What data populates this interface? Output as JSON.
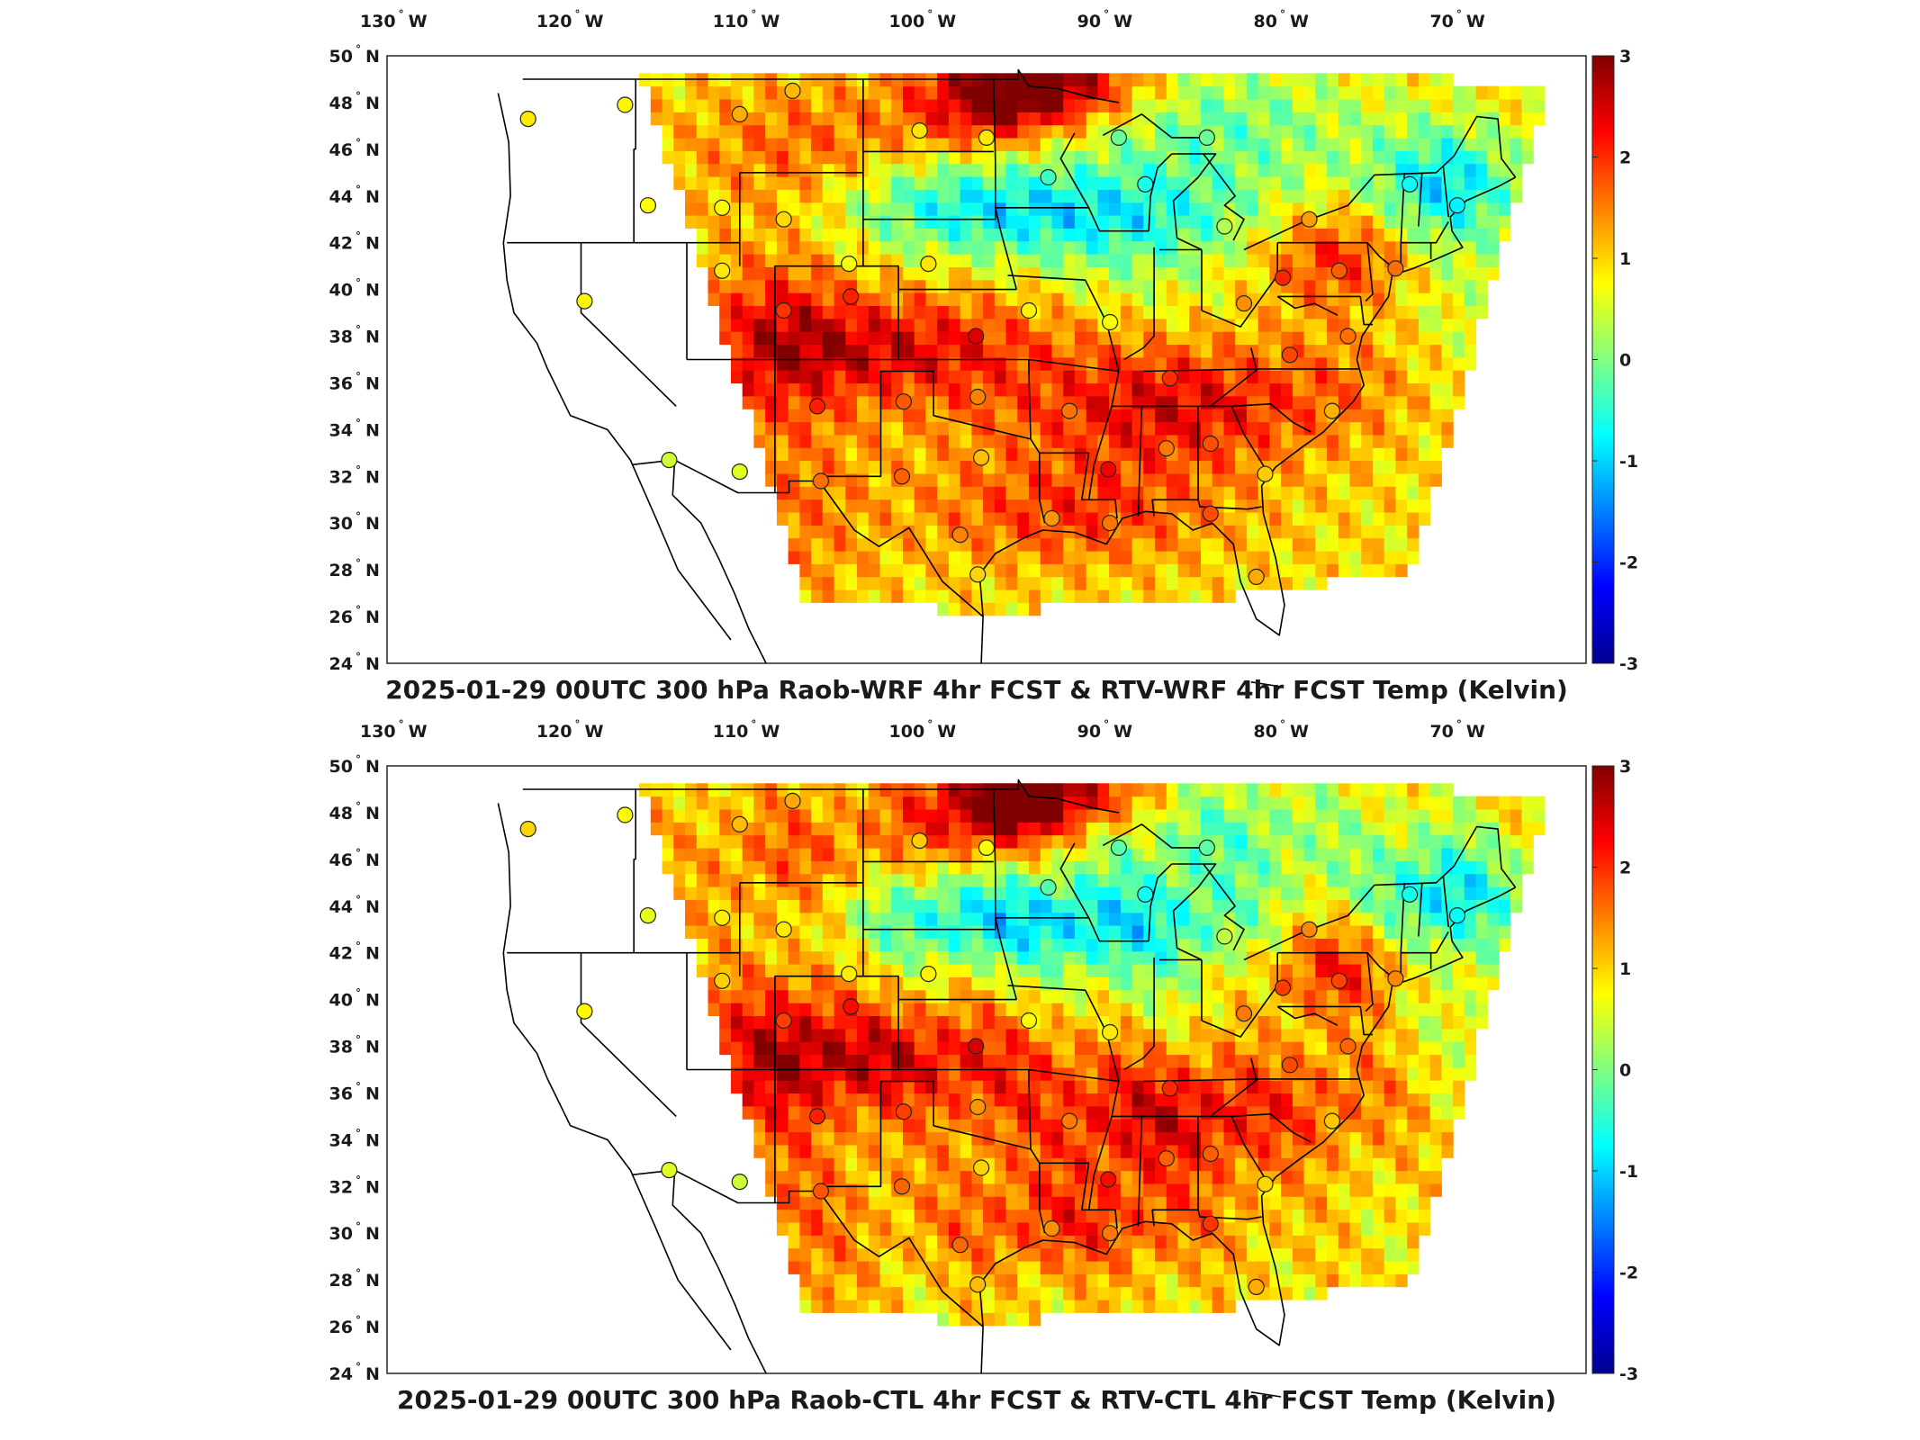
{
  "panels": [
    {
      "title": "2025-01-29 00UTC 300 hPa Raob-WRF 4hr FCST & RTV-WRF 4hr FCST Temp (Kelvin)"
    },
    {
      "title": "2025-01-29 00UTC 300 hPa Raob-CTL 4hr FCST & RTV-CTL 4hr FCST Temp (Kelvin)"
    }
  ],
  "axes": {
    "lon_ticks": [
      {
        "value": -130,
        "num": "130",
        "hemi": "W"
      },
      {
        "value": -120,
        "num": "120",
        "hemi": "W"
      },
      {
        "value": -110,
        "num": "110",
        "hemi": "W"
      },
      {
        "value": -100,
        "num": "100",
        "hemi": "W"
      },
      {
        "value": -90,
        "num": "90",
        "hemi": "W"
      },
      {
        "value": -80,
        "num": "80",
        "hemi": "W"
      },
      {
        "value": -70,
        "num": "70",
        "hemi": "W"
      }
    ],
    "lat_ticks": [
      {
        "value": 50,
        "num": "50",
        "hemi": "N"
      },
      {
        "value": 48,
        "num": "48",
        "hemi": "N"
      },
      {
        "value": 46,
        "num": "46",
        "hemi": "N"
      },
      {
        "value": 44,
        "num": "44",
        "hemi": "N"
      },
      {
        "value": 42,
        "num": "42",
        "hemi": "N"
      },
      {
        "value": 40,
        "num": "40",
        "hemi": "N"
      },
      {
        "value": 38,
        "num": "38",
        "hemi": "N"
      },
      {
        "value": 36,
        "num": "36",
        "hemi": "N"
      },
      {
        "value": 34,
        "num": "34",
        "hemi": "N"
      },
      {
        "value": 32,
        "num": "32",
        "hemi": "N"
      },
      {
        "value": 30,
        "num": "30",
        "hemi": "N"
      },
      {
        "value": 28,
        "num": "28",
        "hemi": "N"
      },
      {
        "value": 26,
        "num": "26",
        "hemi": "N"
      },
      {
        "value": 24,
        "num": "24",
        "hemi": "N"
      }
    ],
    "degree_symbol": "°"
  },
  "colorbar": {
    "min": -3,
    "max": 3,
    "ticks": [
      "3",
      "2",
      "1",
      "0",
      "-1",
      "-2",
      "-3"
    ],
    "colormap": "jet",
    "colors": [
      "#00008f",
      "#0000ff",
      "#00ffff",
      "#80ff80",
      "#ffff00",
      "#ff0000",
      "#800000"
    ]
  },
  "raob_stations": [
    {
      "lon": -123.0,
      "lat": 47.3
    },
    {
      "lon": -117.5,
      "lat": 47.9
    },
    {
      "lon": -108.0,
      "lat": 48.5
    },
    {
      "lon": -111.0,
      "lat": 47.5
    },
    {
      "lon": -100.8,
      "lat": 46.8
    },
    {
      "lon": -97.0,
      "lat": 46.5
    },
    {
      "lon": -93.5,
      "lat": 44.8
    },
    {
      "lon": -89.5,
      "lat": 46.5
    },
    {
      "lon": -84.5,
      "lat": 46.5
    },
    {
      "lon": -88.0,
      "lat": 44.5
    },
    {
      "lon": -83.5,
      "lat": 42.7
    },
    {
      "lon": -78.7,
      "lat": 43.0
    },
    {
      "lon": -73.0,
      "lat": 44.5
    },
    {
      "lon": -70.3,
      "lat": 43.6
    },
    {
      "lon": -73.8,
      "lat": 40.9
    },
    {
      "lon": -77.0,
      "lat": 40.8
    },
    {
      "lon": -80.2,
      "lat": 40.5
    },
    {
      "lon": -76.5,
      "lat": 38.0
    },
    {
      "lon": -79.8,
      "lat": 37.2
    },
    {
      "lon": -82.4,
      "lat": 39.4
    },
    {
      "lon": -86.6,
      "lat": 36.2
    },
    {
      "lon": -90.0,
      "lat": 38.6
    },
    {
      "lon": -94.6,
      "lat": 39.1
    },
    {
      "lon": -97.6,
      "lat": 38.0
    },
    {
      "lon": -100.3,
      "lat": 41.1
    },
    {
      "lon": -104.8,
      "lat": 41.1
    },
    {
      "lon": -108.5,
      "lat": 43.0
    },
    {
      "lon": -112.0,
      "lat": 43.5
    },
    {
      "lon": -116.2,
      "lat": 43.6
    },
    {
      "lon": -119.8,
      "lat": 39.5
    },
    {
      "lon": -112.0,
      "lat": 40.8
    },
    {
      "lon": -108.5,
      "lat": 39.1
    },
    {
      "lon": -104.7,
      "lat": 39.7
    },
    {
      "lon": -106.6,
      "lat": 35.0
    },
    {
      "lon": -101.7,
      "lat": 35.2
    },
    {
      "lon": -97.5,
      "lat": 35.4
    },
    {
      "lon": -92.3,
      "lat": 34.8
    },
    {
      "lon": -90.1,
      "lat": 32.3
    },
    {
      "lon": -86.8,
      "lat": 33.2
    },
    {
      "lon": -84.3,
      "lat": 33.4
    },
    {
      "lon": -81.2,
      "lat": 32.1
    },
    {
      "lon": -77.4,
      "lat": 34.8
    },
    {
      "lon": -84.3,
      "lat": 30.4
    },
    {
      "lon": -81.7,
      "lat": 27.7
    },
    {
      "lon": -90.0,
      "lat": 30.0
    },
    {
      "lon": -93.3,
      "lat": 30.2
    },
    {
      "lon": -97.5,
      "lat": 27.8
    },
    {
      "lon": -98.5,
      "lat": 29.5
    },
    {
      "lon": -97.3,
      "lat": 32.8
    },
    {
      "lon": -101.8,
      "lat": 32.0
    },
    {
      "lon": -106.4,
      "lat": 31.8
    },
    {
      "lon": -111.0,
      "lat": 32.2
    },
    {
      "lon": -115.0,
      "lat": 32.7
    }
  ]
}
